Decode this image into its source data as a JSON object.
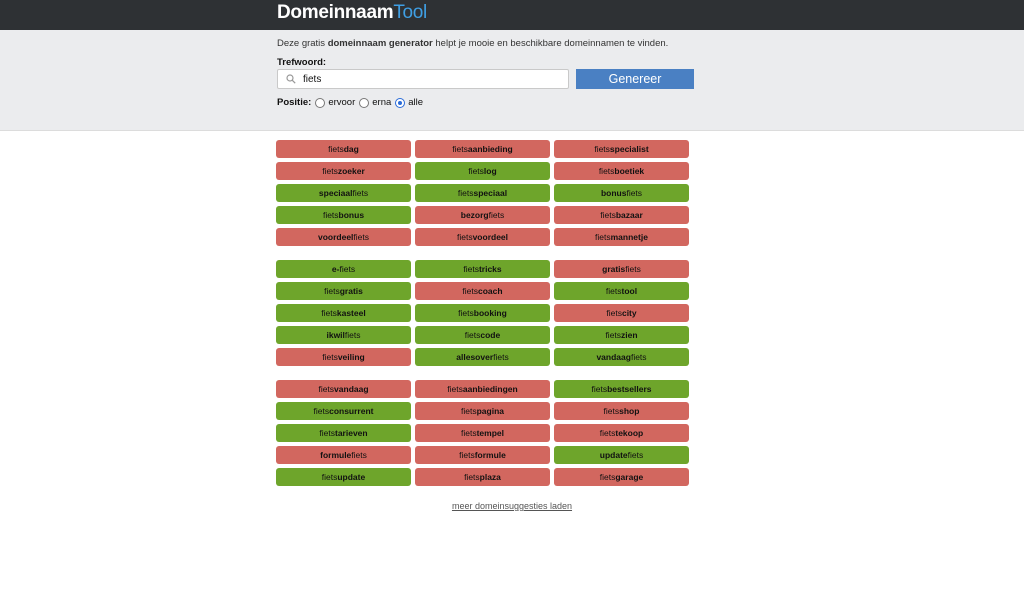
{
  "header": {
    "logo_part1": "Domeinnaam",
    "logo_part2": "Tool"
  },
  "panel": {
    "intro_before": "Deze gratis ",
    "intro_bold": "domeinnaam generator",
    "intro_after": " helpt je mooie en beschikbare domeinnamen te vinden.",
    "keyword_label": "Trefwoord:",
    "keyword_value": "fiets",
    "generate_label": "Genereer",
    "position_label": "Positie:",
    "options": [
      {
        "label": "ervoor",
        "checked": false
      },
      {
        "label": "erna",
        "checked": false
      },
      {
        "label": "alle",
        "checked": true
      }
    ]
  },
  "colors": {
    "taken": "#d2675f",
    "available": "#6ea52b"
  },
  "groups": [
    [
      {
        "pre": "fiets",
        "bold": "dag",
        "post": "",
        "status": "taken"
      },
      {
        "pre": "fiets",
        "bold": "aanbieding",
        "post": "",
        "status": "taken"
      },
      {
        "pre": "fiets",
        "bold": "specialist",
        "post": "",
        "status": "taken"
      },
      {
        "pre": "fiets",
        "bold": "zoeker",
        "post": "",
        "status": "taken"
      },
      {
        "pre": "fiets",
        "bold": "log",
        "post": "",
        "status": "available"
      },
      {
        "pre": "fiets",
        "bold": "boetiek",
        "post": "",
        "status": "taken"
      },
      {
        "pre": "",
        "bold": "speciaal",
        "post": "fiets",
        "status": "available"
      },
      {
        "pre": "fiets",
        "bold": "speciaal",
        "post": "",
        "status": "available"
      },
      {
        "pre": "",
        "bold": "bonus",
        "post": "fiets",
        "status": "available"
      },
      {
        "pre": "fiets",
        "bold": "bonus",
        "post": "",
        "status": "available"
      },
      {
        "pre": "",
        "bold": "bezorg",
        "post": "fiets",
        "status": "taken"
      },
      {
        "pre": "fiets",
        "bold": "bazaar",
        "post": "",
        "status": "taken"
      },
      {
        "pre": "",
        "bold": "voordeel",
        "post": "fiets",
        "status": "taken"
      },
      {
        "pre": "fiets",
        "bold": "voordeel",
        "post": "",
        "status": "taken"
      },
      {
        "pre": "fiets",
        "bold": "mannetje",
        "post": "",
        "status": "taken"
      }
    ],
    [
      {
        "pre": "",
        "bold": "e-",
        "post": "fiets",
        "status": "available"
      },
      {
        "pre": "fiets",
        "bold": "tricks",
        "post": "",
        "status": "available"
      },
      {
        "pre": "",
        "bold": "gratis",
        "post": "fiets",
        "status": "taken"
      },
      {
        "pre": "fiets",
        "bold": "gratis",
        "post": "",
        "status": "available"
      },
      {
        "pre": "fiets",
        "bold": "coach",
        "post": "",
        "status": "taken"
      },
      {
        "pre": "fiets",
        "bold": "tool",
        "post": "",
        "status": "available"
      },
      {
        "pre": "fiets",
        "bold": "kasteel",
        "post": "",
        "status": "available"
      },
      {
        "pre": "fiets",
        "bold": "booking",
        "post": "",
        "status": "available"
      },
      {
        "pre": "fiets",
        "bold": "city",
        "post": "",
        "status": "taken"
      },
      {
        "pre": "",
        "bold": "ikwil",
        "post": "fiets",
        "status": "available"
      },
      {
        "pre": "fiets",
        "bold": "code",
        "post": "",
        "status": "available"
      },
      {
        "pre": "fiets",
        "bold": "zien",
        "post": "",
        "status": "available"
      },
      {
        "pre": "fiets",
        "bold": "veiling",
        "post": "",
        "status": "taken"
      },
      {
        "pre": "",
        "bold": "allesover",
        "post": "fiets",
        "status": "available"
      },
      {
        "pre": "",
        "bold": "vandaag",
        "post": "fiets",
        "status": "available"
      }
    ],
    [
      {
        "pre": "fiets",
        "bold": "vandaag",
        "post": "",
        "status": "taken"
      },
      {
        "pre": "fiets",
        "bold": "aanbiedingen",
        "post": "",
        "status": "taken"
      },
      {
        "pre": "fiets",
        "bold": "bestsellers",
        "post": "",
        "status": "available"
      },
      {
        "pre": "fiets",
        "bold": "consurrent",
        "post": "",
        "status": "available"
      },
      {
        "pre": "fiets",
        "bold": "pagina",
        "post": "",
        "status": "taken"
      },
      {
        "pre": "fiets",
        "bold": "shop",
        "post": "",
        "status": "taken"
      },
      {
        "pre": "fiets",
        "bold": "tarieven",
        "post": "",
        "status": "available"
      },
      {
        "pre": "fiets",
        "bold": "tempel",
        "post": "",
        "status": "taken"
      },
      {
        "pre": "fiets",
        "bold": "tekoop",
        "post": "",
        "status": "taken"
      },
      {
        "pre": "",
        "bold": "formule",
        "post": "fiets",
        "status": "taken"
      },
      {
        "pre": "fiets",
        "bold": "formule",
        "post": "",
        "status": "taken"
      },
      {
        "pre": "",
        "bold": "update",
        "post": "fiets",
        "status": "available"
      },
      {
        "pre": "fiets",
        "bold": "update",
        "post": "",
        "status": "available"
      },
      {
        "pre": "fiets",
        "bold": "plaza",
        "post": "",
        "status": "taken"
      },
      {
        "pre": "fiets",
        "bold": "garage",
        "post": "",
        "status": "taken"
      }
    ]
  ],
  "more_link": "meer domeinsuggesties laden"
}
